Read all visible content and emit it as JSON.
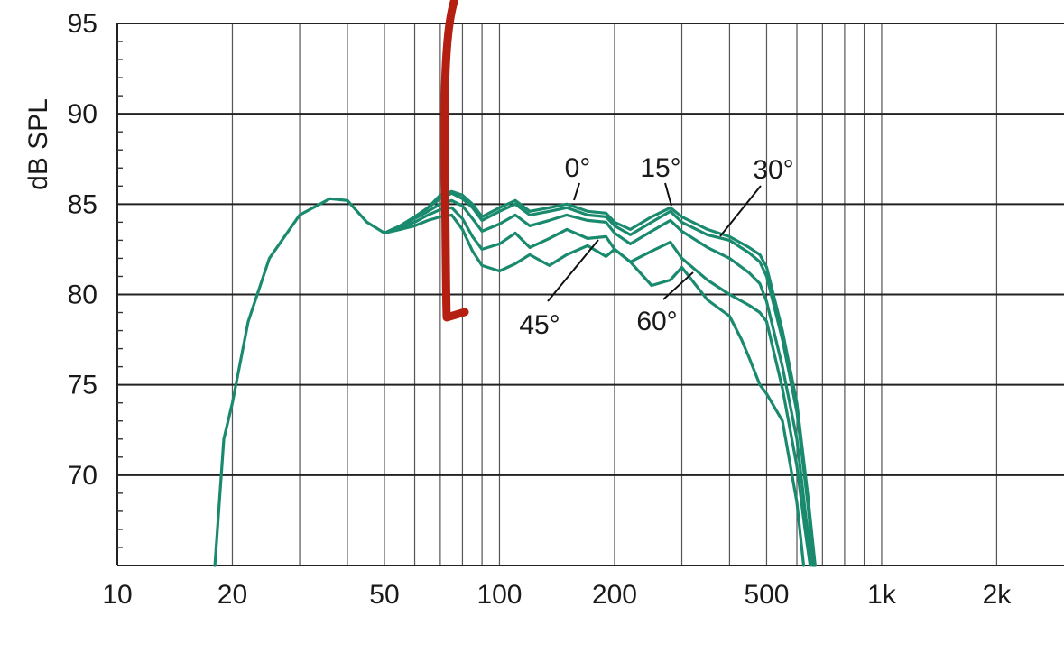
{
  "chart_data": {
    "type": "line",
    "title": "",
    "xlabel": "",
    "ylabel": "dB SPL",
    "x_scale": "log",
    "xlim": [
      10,
      3000
    ],
    "ylim": [
      65,
      95
    ],
    "grid": true,
    "legend": "none",
    "x_ticks": [
      {
        "value": 10,
        "label": "10"
      },
      {
        "value": 20,
        "label": "20"
      },
      {
        "value": 50,
        "label": "50"
      },
      {
        "value": 100,
        "label": "100"
      },
      {
        "value": 200,
        "label": "200"
      },
      {
        "value": 500,
        "label": "500"
      },
      {
        "value": 1000,
        "label": "1k"
      },
      {
        "value": 2000,
        "label": "2k"
      }
    ],
    "y_ticks": [
      {
        "value": 70,
        "label": "70"
      },
      {
        "value": 75,
        "label": "75"
      },
      {
        "value": 80,
        "label": "80"
      },
      {
        "value": 85,
        "label": "85"
      },
      {
        "value": 90,
        "label": "90"
      },
      {
        "value": 95,
        "label": "95"
      }
    ],
    "x_grid_values": [
      20,
      30,
      40,
      50,
      60,
      70,
      80,
      90,
      100,
      200,
      300,
      400,
      500,
      600,
      700,
      800,
      900,
      1000,
      2000
    ],
    "series_color": "#1a8a6e",
    "series": [
      {
        "angle": "0°",
        "x": [
          18,
          19,
          20,
          22,
          25,
          30,
          36,
          40,
          45,
          50,
          55,
          60,
          65,
          70,
          75,
          80,
          85,
          90,
          100,
          110,
          120,
          135,
          150,
          170,
          190,
          200,
          220,
          250,
          280,
          300,
          350,
          400,
          450,
          480,
          500,
          550,
          600,
          640,
          670
        ],
        "y": [
          65,
          72,
          74,
          78.5,
          82,
          84.4,
          85.3,
          85.2,
          84,
          83.4,
          83.8,
          84.3,
          84.8,
          85.5,
          85.7,
          85.5,
          85,
          84.3,
          84.8,
          85.2,
          84.6,
          84.8,
          85,
          84.6,
          84.5,
          84,
          83.6,
          84.3,
          84.8,
          84.3,
          83.6,
          83.2,
          82.6,
          82.2,
          81.5,
          78,
          74,
          69,
          65
        ]
      },
      {
        "angle": "15°",
        "x": [
          50,
          55,
          60,
          65,
          70,
          75,
          80,
          85,
          90,
          100,
          110,
          120,
          135,
          150,
          170,
          190,
          200,
          220,
          250,
          280,
          300,
          350,
          400,
          450,
          480,
          500,
          550,
          600,
          640,
          665
        ],
        "y": [
          83.4,
          83.8,
          84.3,
          84.8,
          85.3,
          85.6,
          85.3,
          84.8,
          84.1,
          84.6,
          85,
          84.4,
          84.6,
          84.8,
          84.4,
          84.3,
          83.8,
          83.3,
          84,
          84.6,
          84,
          83.3,
          83,
          82.3,
          81.8,
          81,
          77.5,
          73.5,
          68.5,
          65
        ]
      },
      {
        "angle": "30°",
        "x": [
          50,
          55,
          60,
          65,
          70,
          75,
          80,
          85,
          90,
          100,
          110,
          120,
          135,
          150,
          170,
          190,
          200,
          220,
          250,
          280,
          300,
          350,
          400,
          450,
          480,
          500,
          550,
          600,
          635,
          660
        ],
        "y": [
          83.4,
          83.8,
          84.2,
          84.6,
          85,
          85.2,
          84.9,
          84.2,
          83.5,
          83.9,
          84.4,
          83.8,
          84.1,
          84.4,
          84.1,
          84,
          83.4,
          82.8,
          83.5,
          84.1,
          83.5,
          82.6,
          82,
          81.2,
          80.6,
          79.6,
          76,
          72,
          67.5,
          65
        ]
      },
      {
        "angle": "45°",
        "x": [
          50,
          55,
          60,
          65,
          70,
          75,
          80,
          85,
          90,
          100,
          110,
          120,
          135,
          150,
          170,
          190,
          200,
          220,
          250,
          280,
          300,
          350,
          400,
          450,
          480,
          500,
          550,
          600,
          630,
          650
        ],
        "y": [
          83.4,
          83.7,
          84,
          84.4,
          84.7,
          84.8,
          84.2,
          83.2,
          82.5,
          82.8,
          83.4,
          82.6,
          83.1,
          83.6,
          83.1,
          83.2,
          82.5,
          81.8,
          82.4,
          82.9,
          82,
          80.8,
          80,
          79.4,
          79,
          78.5,
          74.8,
          70.5,
          67,
          65
        ]
      },
      {
        "angle": "60°",
        "x": [
          50,
          55,
          60,
          65,
          70,
          75,
          80,
          85,
          90,
          100,
          110,
          120,
          135,
          150,
          170,
          190,
          200,
          220,
          250,
          280,
          300,
          350,
          400,
          430,
          450,
          480,
          500,
          550,
          600,
          625
        ],
        "y": [
          83.4,
          83.6,
          83.8,
          84.1,
          84.3,
          84.4,
          83.6,
          82.4,
          81.6,
          81.3,
          81.7,
          82.2,
          81.6,
          82.2,
          82.7,
          82.1,
          82.5,
          81.8,
          80.5,
          80.8,
          81.5,
          79.7,
          78.8,
          77.5,
          76.5,
          75,
          74.5,
          73,
          68.5,
          65
        ]
      }
    ],
    "annotations": [
      {
        "text": "0°",
        "series": "0°"
      },
      {
        "text": "15°",
        "series": "15°"
      },
      {
        "text": "30°",
        "series": "30°"
      },
      {
        "text": "45°",
        "series": "45°"
      },
      {
        "text": "60°",
        "series": "60°"
      }
    ]
  }
}
